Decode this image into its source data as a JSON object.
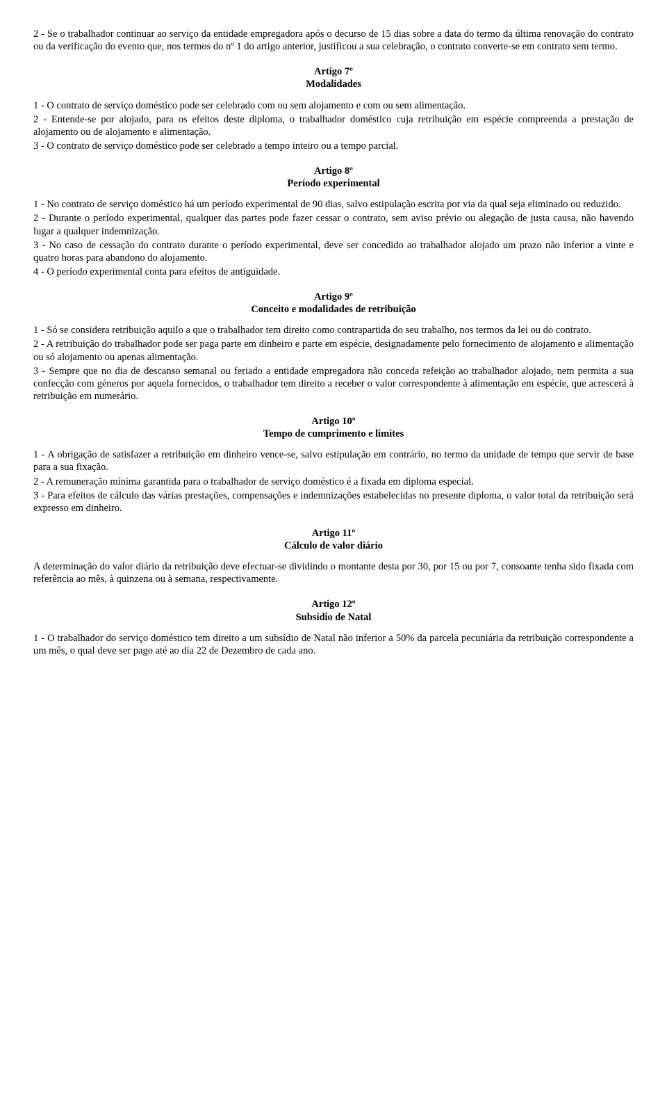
{
  "intro": {
    "p1": "2 - Se o trabalhador continuar ao serviço da entidade empregadora após o decurso de 15 dias sobre a data do termo da última renovação do contrato ou da verificação do evento que, nos termos do nº 1 do artigo anterior, justificou a sua celebração, o contrato converte-se em contrato sem termo."
  },
  "art7": {
    "title": "Artigo 7º",
    "subtitle": "Modalidades",
    "p1": "1 - O contrato de serviço doméstico pode ser celebrado com ou sem alojamento e com ou sem alimentação.",
    "p2": "2 - Entende-se por alojado, para os efeitos deste diploma, o trabalhador doméstico cuja retribuição em espécie compreenda a prestação de alojamento ou de alojamento e alimentação.",
    "p3": "3 - O contrato de serviço doméstico pode ser celebrado a tempo inteiro ou a tempo parcial."
  },
  "art8": {
    "title": "Artigo 8º",
    "subtitle": "Período experimental",
    "p1": "1 - No contrato de serviço doméstico há um período experimental de 90 dias, salvo estipulação escrita por via da qual seja eliminado ou reduzido.",
    "p2": "2 - Durante o período experimental, qualquer das partes pode fazer cessar o contrato, sem aviso prévio ou alegação de justa causa, não havendo lugar a qualquer indemnização.",
    "p3": "3 - No caso de cessação do contrato durante o período experimental, deve ser concedido ao trabalhador alojado um prazo não inferior a vinte e quatro horas para abandono do alojamento.",
    "p4": "4 - O período experimental conta para efeitos de antiguidade."
  },
  "art9": {
    "title": "Artigo 9º",
    "subtitle": "Conceito e modalidades de retribuição",
    "p1": "1 - Só se considera retribuição aquilo a que o trabalhador tem direito como contrapartida do seu trabalho, nos termos da lei ou do contrato.",
    "p2": "2 - A retribuição do trabalhador pode ser paga parte em dinheiro e parte em espécie, designadamente pelo fornecimento de alojamento e alimentação ou só alojamento ou apenas alimentação.",
    "p3": "3 - Sempre que no dia de descanso semanal ou feriado a entidade empregadora não conceda refeição ao trabalhador alojado, nem permita a sua confecção com géneros por aquela fornecidos, o trabalhador tem direito a receber o valor correspondente à alimentação em espécie, que acrescerá à retribuição em numerário."
  },
  "art10": {
    "title": "Artigo 10º",
    "subtitle": "Tempo de cumprimento e limites",
    "p1": "1 - A obrigação de satisfazer a retribuição em dinheiro vence-se, salvo estipulação em contrário, no termo da unidade de tempo que servir de base para a sua fixação.",
    "p2": "2 - A remuneração mínima garantida para o trabalhador de serviço doméstico é a fixada em diploma especial.",
    "p3": "3 - Para efeitos de cálculo das várias prestações, compensações e indemnizações estabelecidas no presente diploma, o valor total da retribuição será expresso em dinheiro."
  },
  "art11": {
    "title": "Artigo 11º",
    "subtitle": "Cálculo de valor diário",
    "p1": "A determinação do valor diário da retribuição deve efectuar-se dividindo o montante desta por 30, por 15 ou por 7, consoante tenha sido fixada com referência ao mês, à quinzena ou à semana, respectivamente."
  },
  "art12": {
    "title": "Artigo 12º",
    "subtitle": "Subsídio de Natal",
    "p1": "1 - O trabalhador do serviço doméstico tem direito a um subsídio de Natal não inferior a 50% da parcela pecuniária da retribuição correspondente a um mês, o qual deve ser pago até ao dia 22 de Dezembro de cada ano."
  }
}
